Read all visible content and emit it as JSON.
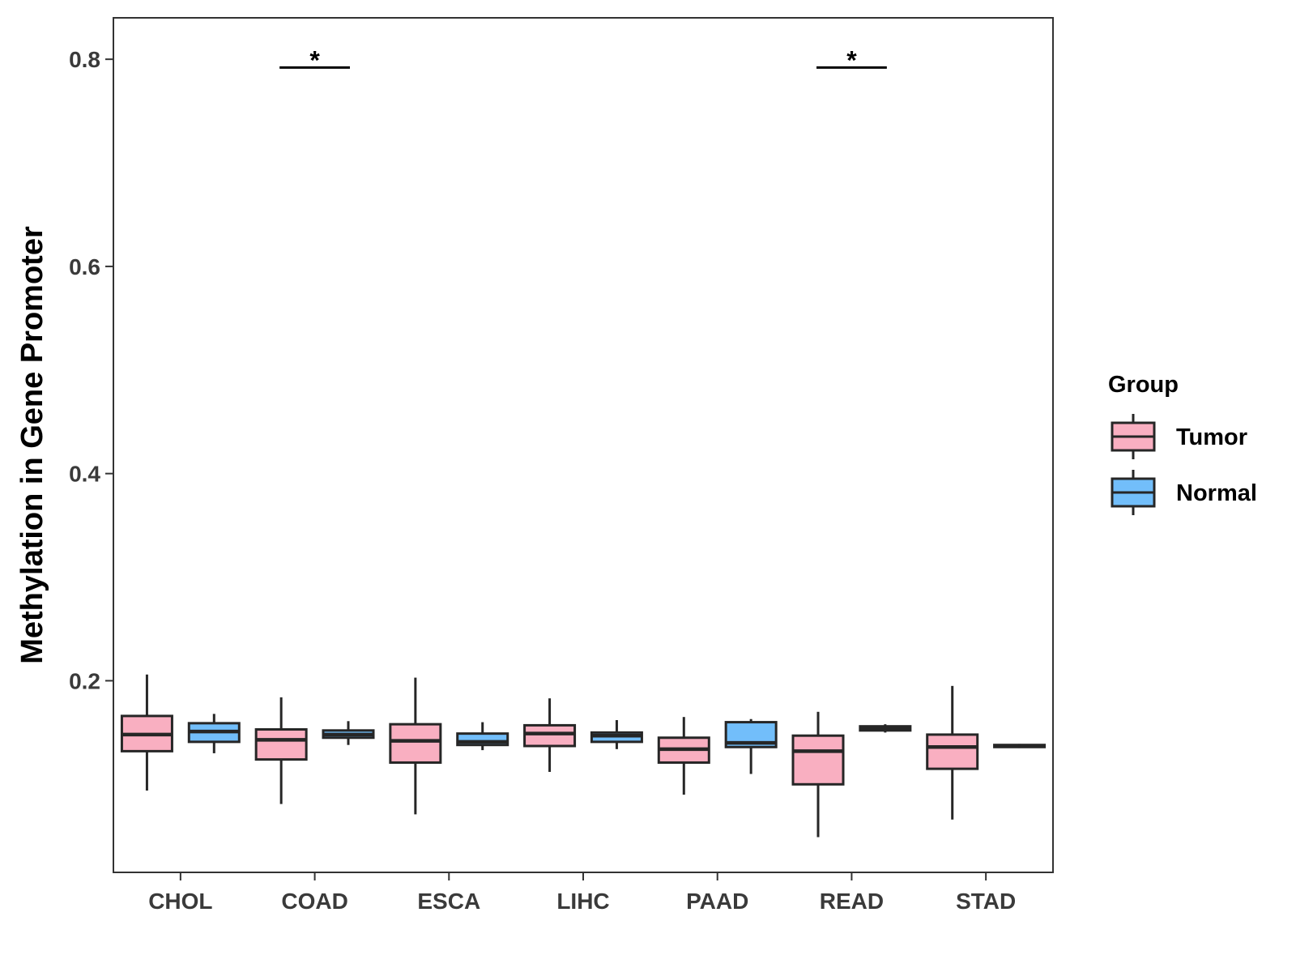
{
  "chart_data": {
    "type": "boxplot",
    "title": "",
    "xlabel": "",
    "ylabel": "Methylation in Gene Promoter",
    "ylim": [
      0.015,
      0.84
    ],
    "yticks": [
      0.2,
      0.4,
      0.6,
      0.8
    ],
    "ytick_labels": [
      "0.2",
      "0.4",
      "0.6",
      "0.8"
    ],
    "categories": [
      "CHOL",
      "COAD",
      "ESCA",
      "LIHC",
      "PAAD",
      "READ",
      "STAD"
    ],
    "legend": {
      "title": "Group",
      "position": "right",
      "entries": [
        {
          "name": "Tumor",
          "color": "#F9AFC1"
        },
        {
          "name": "Normal",
          "color": "#72BEFA"
        }
      ]
    },
    "series": [
      {
        "name": "Tumor",
        "color": "#F9AFC1",
        "boxes": [
          {
            "category": "CHOL",
            "min": 0.094,
            "q1": 0.132,
            "median": 0.148,
            "q3": 0.166,
            "max": 0.206
          },
          {
            "category": "COAD",
            "min": 0.081,
            "q1": 0.124,
            "median": 0.143,
            "q3": 0.153,
            "max": 0.184
          },
          {
            "category": "ESCA",
            "min": 0.071,
            "q1": 0.121,
            "median": 0.142,
            "q3": 0.158,
            "max": 0.203
          },
          {
            "category": "LIHC",
            "min": 0.112,
            "q1": 0.137,
            "median": 0.149,
            "q3": 0.157,
            "max": 0.183
          },
          {
            "category": "PAAD",
            "min": 0.09,
            "q1": 0.121,
            "median": 0.134,
            "q3": 0.145,
            "max": 0.165
          },
          {
            "category": "READ",
            "min": 0.049,
            "q1": 0.1,
            "median": 0.132,
            "q3": 0.147,
            "max": 0.17
          },
          {
            "category": "STAD",
            "min": 0.066,
            "q1": 0.115,
            "median": 0.136,
            "q3": 0.148,
            "max": 0.195
          }
        ]
      },
      {
        "name": "Normal",
        "color": "#72BEFA",
        "boxes": [
          {
            "category": "CHOL",
            "min": 0.13,
            "q1": 0.141,
            "median": 0.151,
            "q3": 0.159,
            "max": 0.168
          },
          {
            "category": "COAD",
            "min": 0.138,
            "q1": 0.145,
            "median": 0.148,
            "q3": 0.152,
            "max": 0.161
          },
          {
            "category": "ESCA",
            "min": 0.133,
            "q1": 0.138,
            "median": 0.141,
            "q3": 0.149,
            "max": 0.16
          },
          {
            "category": "LIHC",
            "min": 0.134,
            "q1": 0.141,
            "median": 0.147,
            "q3": 0.15,
            "max": 0.162
          },
          {
            "category": "PAAD",
            "min": 0.11,
            "q1": 0.136,
            "median": 0.14,
            "q3": 0.16,
            "max": 0.163
          },
          {
            "category": "READ",
            "min": 0.15,
            "q1": 0.152,
            "median": 0.154,
            "q3": 0.156,
            "max": 0.158
          },
          {
            "category": "STAD",
            "min": 0.135,
            "q1": 0.136,
            "median": 0.137,
            "q3": 0.138,
            "max": 0.139
          }
        ]
      }
    ],
    "annotations": [
      {
        "category": "COAD",
        "text": "*",
        "y": 0.792
      },
      {
        "category": "READ",
        "text": "*",
        "y": 0.792
      }
    ],
    "grid": false
  }
}
